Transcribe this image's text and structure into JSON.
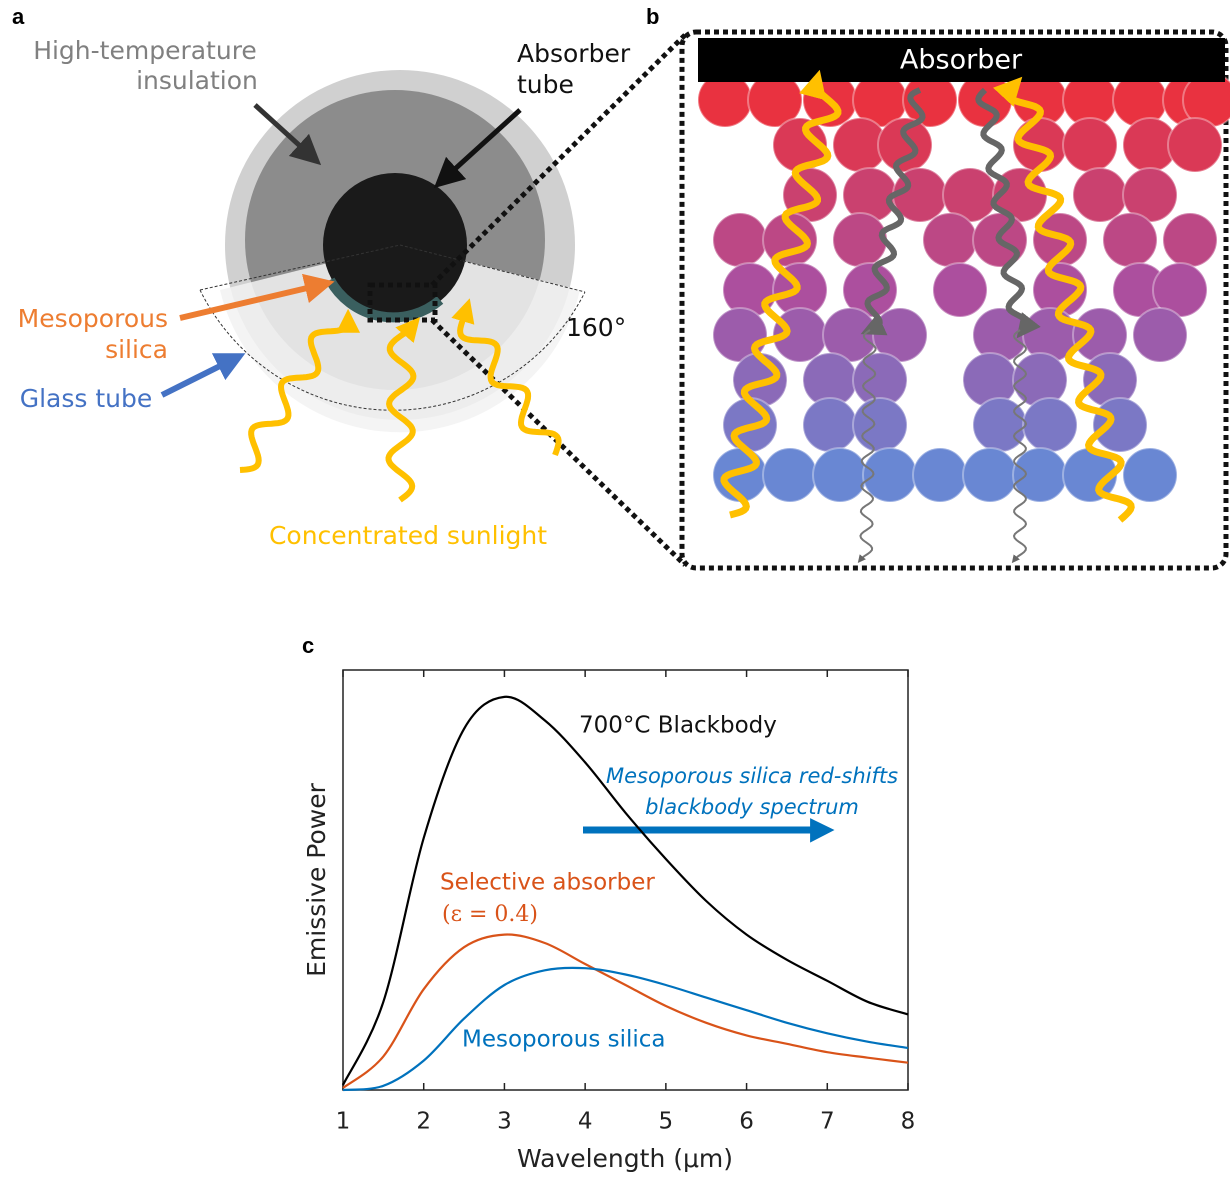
{
  "panel_a": {
    "label": "a",
    "insulation": [
      "High-temperature",
      "insulation"
    ],
    "absorber_tube": [
      "Absorber",
      "tube"
    ],
    "mesoporous": [
      "Mesoporous",
      "silica"
    ],
    "glass_tube": "Glass tube",
    "angle": "160°",
    "sunlight": "Concentrated sunlight"
  },
  "panel_b": {
    "label": "b",
    "absorber": "Absorber"
  },
  "chart_data": {
    "type": "line",
    "panel_label": "c",
    "x_label": "Wavelength (μm)",
    "y_label": "Emissive Power",
    "x": [
      1,
      1.5,
      2,
      2.5,
      3,
      3.5,
      4,
      4.5,
      5,
      5.5,
      6,
      6.5,
      7,
      7.5,
      8
    ],
    "xlim": [
      1,
      8
    ],
    "xticks": [
      1,
      2,
      3,
      4,
      5,
      6,
      7,
      8
    ],
    "ylim": [
      0,
      1
    ],
    "series": [
      {
        "name": "700°C Blackbody",
        "color": "#000000",
        "values": [
          0.012,
          0.21,
          0.6,
          0.86,
          0.936,
          0.88,
          0.78,
          0.66,
          0.55,
          0.45,
          0.37,
          0.31,
          0.26,
          0.21,
          0.18
        ]
      },
      {
        "name": "Selective absorber",
        "color": "#d95319",
        "values": [
          0.005,
          0.08,
          0.24,
          0.34,
          0.37,
          0.35,
          0.3,
          0.25,
          0.2,
          0.16,
          0.13,
          0.11,
          0.09,
          0.077,
          0.065
        ]
      },
      {
        "name": "Mesoporous silica",
        "color": "#0072bd",
        "values": [
          0,
          0.01,
          0.07,
          0.17,
          0.25,
          0.285,
          0.29,
          0.275,
          0.25,
          0.22,
          0.19,
          0.16,
          0.135,
          0.115,
          0.1
        ]
      }
    ],
    "annotations": {
      "epsilon": "(ε = 0.4)",
      "shift": [
        "Mesoporous silica red-shifts",
        "blackbody spectrum"
      ]
    }
  }
}
